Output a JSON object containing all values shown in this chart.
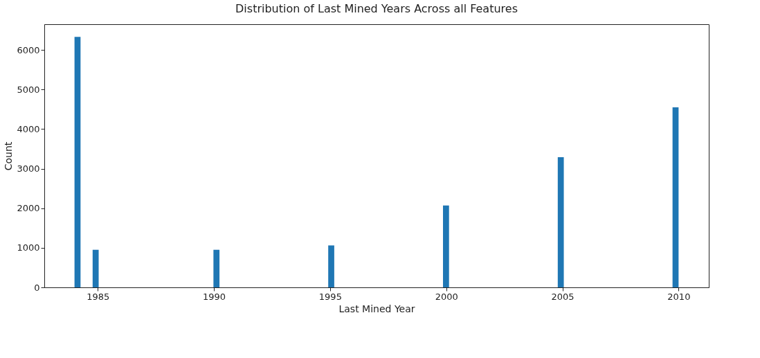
{
  "chart_data": {
    "type": "histogram",
    "title": "Distribution of Last Mined Years Across all Features",
    "xlabel": "Last Mined Year",
    "ylabel": "Count",
    "bins": [
      1984,
      1984.26,
      1984.78,
      1985.04,
      1989.98,
      1990.24,
      1994.92,
      1995.18,
      1999.86,
      2000.12,
      2004.8,
      2005.06,
      2009.74,
      2010
    ],
    "values": [
      6330,
      0,
      950,
      0,
      950,
      0,
      1060,
      0,
      2070,
      0,
      3290,
      0,
      4550
    ],
    "color": "#1f77b4",
    "xlim": [
      1982.7,
      2011.3
    ],
    "xticks": [
      1985,
      1990,
      1995,
      2000,
      2005,
      2010
    ],
    "ylim": [
      0,
      6650
    ],
    "yticks": [
      0,
      1000,
      2000,
      3000,
      4000,
      5000,
      6000
    ],
    "grid": false
  }
}
